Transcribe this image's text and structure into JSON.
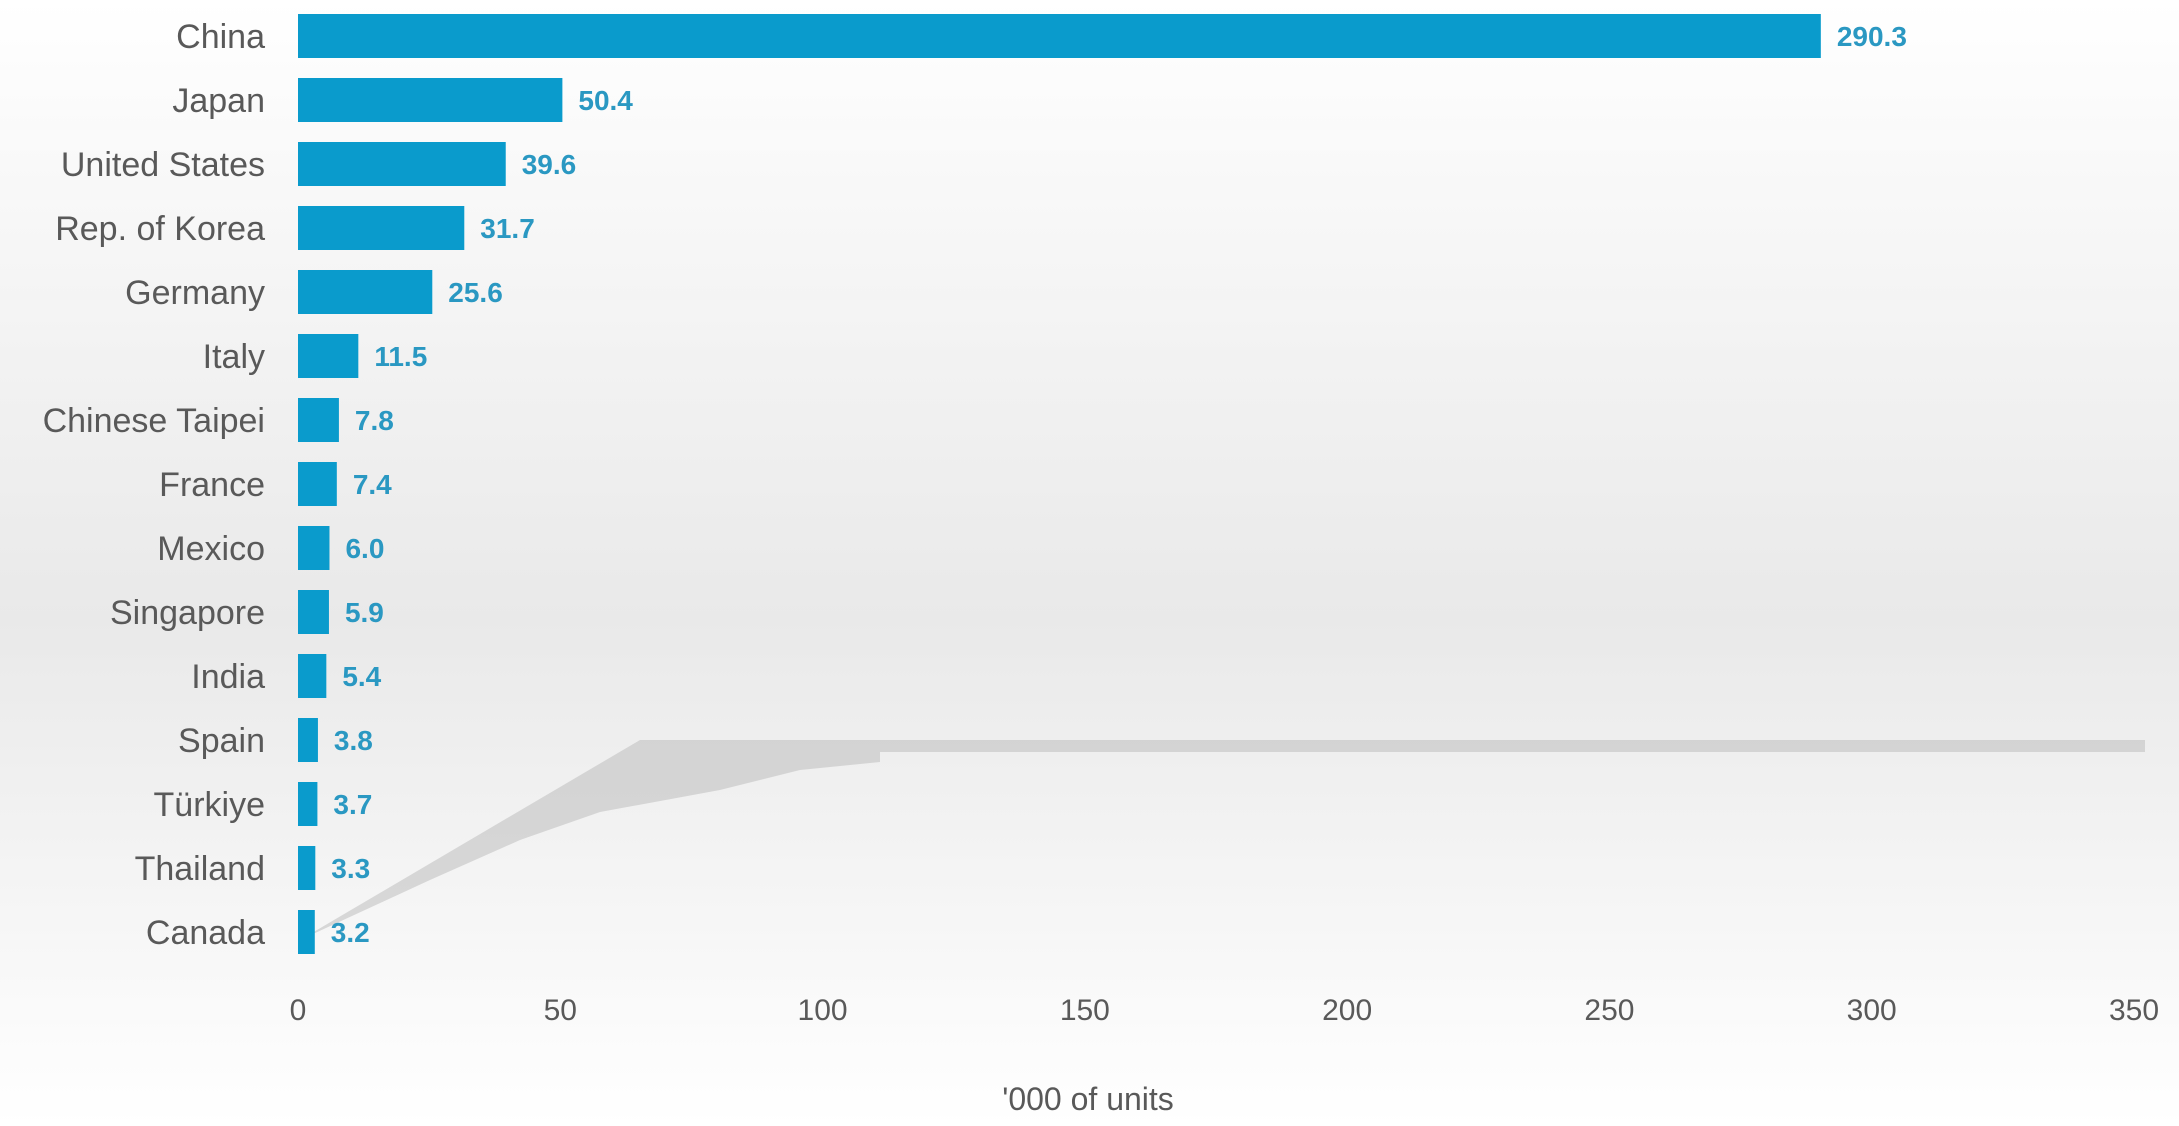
{
  "chart_data": {
    "type": "bar",
    "orientation": "horizontal",
    "categories": [
      "China",
      "Japan",
      "United States",
      "Rep. of Korea",
      "Germany",
      "Italy",
      "Chinese Taipei",
      "France",
      "Mexico",
      "Singapore",
      "India",
      "Spain",
      "Türkiye",
      "Thailand",
      "Canada"
    ],
    "values": [
      290.3,
      50.4,
      39.6,
      31.7,
      25.6,
      11.5,
      7.8,
      7.4,
      6.0,
      5.9,
      5.4,
      3.8,
      3.7,
      3.3,
      3.2
    ],
    "value_labels": [
      "290.3",
      "50.4",
      "39.6",
      "31.7",
      "25.6",
      "11.5",
      "7.8",
      "7.4",
      "6.0",
      "5.9",
      "5.4",
      "3.8",
      "3.7",
      "3.3",
      "3.2"
    ],
    "xlabel": "'000 of units",
    "xlim": [
      0,
      350
    ],
    "xticks": [
      0,
      50,
      100,
      150,
      200,
      250,
      300,
      350
    ],
    "xtick_labels": [
      "0",
      "50",
      "100",
      "150",
      "200",
      "250",
      "300",
      "350"
    ],
    "grid": false,
    "colors": {
      "bar": "#0a9bcc",
      "value_label": "#2a98c2",
      "text": "#595959"
    }
  }
}
